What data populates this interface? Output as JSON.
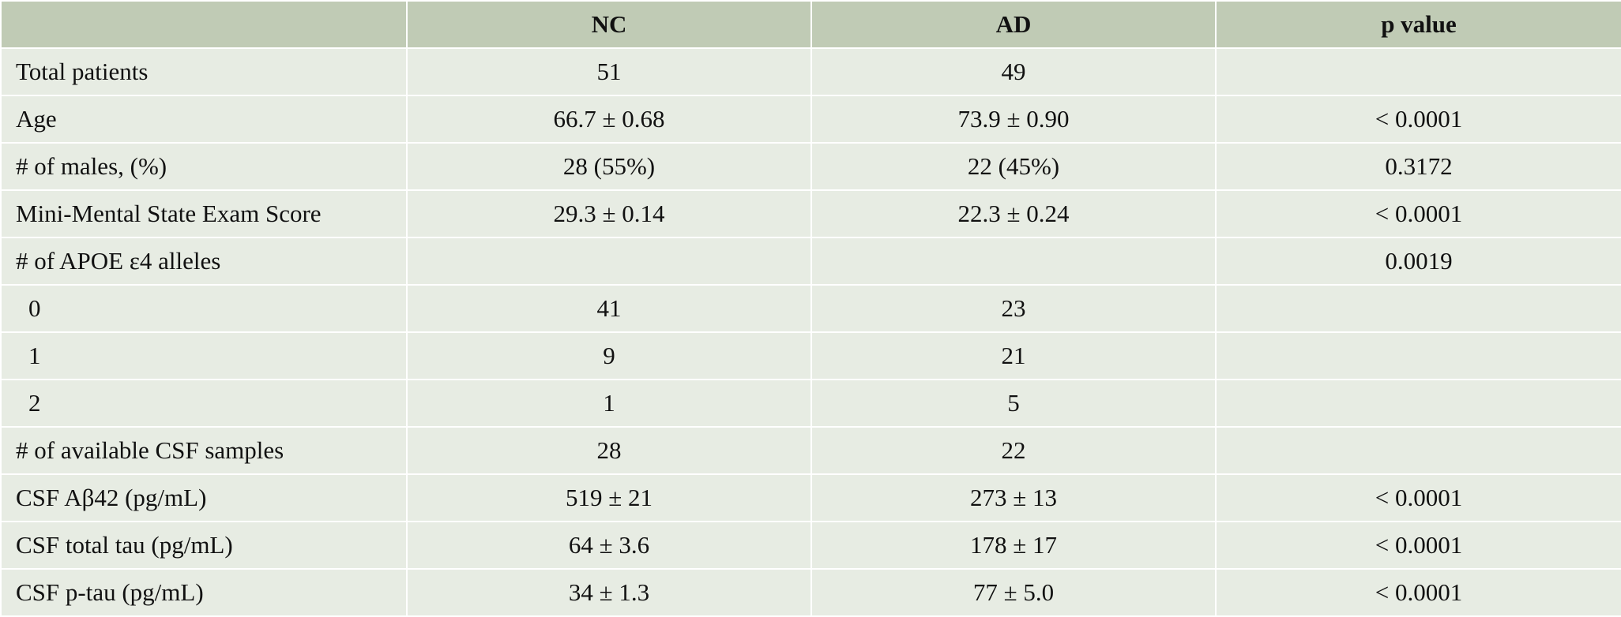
{
  "table": {
    "header": [
      "NC",
      "AD",
      "p value"
    ],
    "rows": [
      {
        "label": "Total patients",
        "nc": "51",
        "ad": "49"
      },
      {
        "label": "Age",
        "nc": "66.7 ± 0.68",
        "ad": "73.9 ± 0.90",
        "p": "< 0.0001"
      },
      {
        "label": "# of males, (%)",
        "nc": "28 (55%)",
        "ad": "22 (45%)",
        "p": "0.3172"
      },
      {
        "label": "Mini-Mental State Exam Score",
        "nc": "29.3 ± 0.14",
        "ad": "22.3 ± 0.24",
        "p": "< 0.0001"
      },
      {
        "label": "# of APOE ε4 alleles",
        "p": "0.0019",
        "subrows": [
          {
            "label": "0",
            "nc": "41",
            "ad": "23"
          },
          {
            "label": "1",
            "nc": "9",
            "ad": "21"
          },
          {
            "label": "2",
            "nc": "1",
            "ad": "5"
          }
        ]
      },
      {
        "label": "# of available CSF samples",
        "nc": "28",
        "ad": "22"
      },
      {
        "label": "CSF Aβ42 (pg/mL)",
        "nc": "519 ± 21",
        "ad": "273 ± 13",
        "p": "< 0.0001"
      },
      {
        "label": "CSF total tau (pg/mL)",
        "nc": "64 ± 3.6",
        "ad": "178 ± 17",
        "p": "< 0.0001"
      },
      {
        "label": "CSF p-tau (pg/mL)",
        "nc": "34 ± 1.3",
        "ad": "77 ± 5.0",
        "p": "< 0.0001"
      }
    ]
  }
}
